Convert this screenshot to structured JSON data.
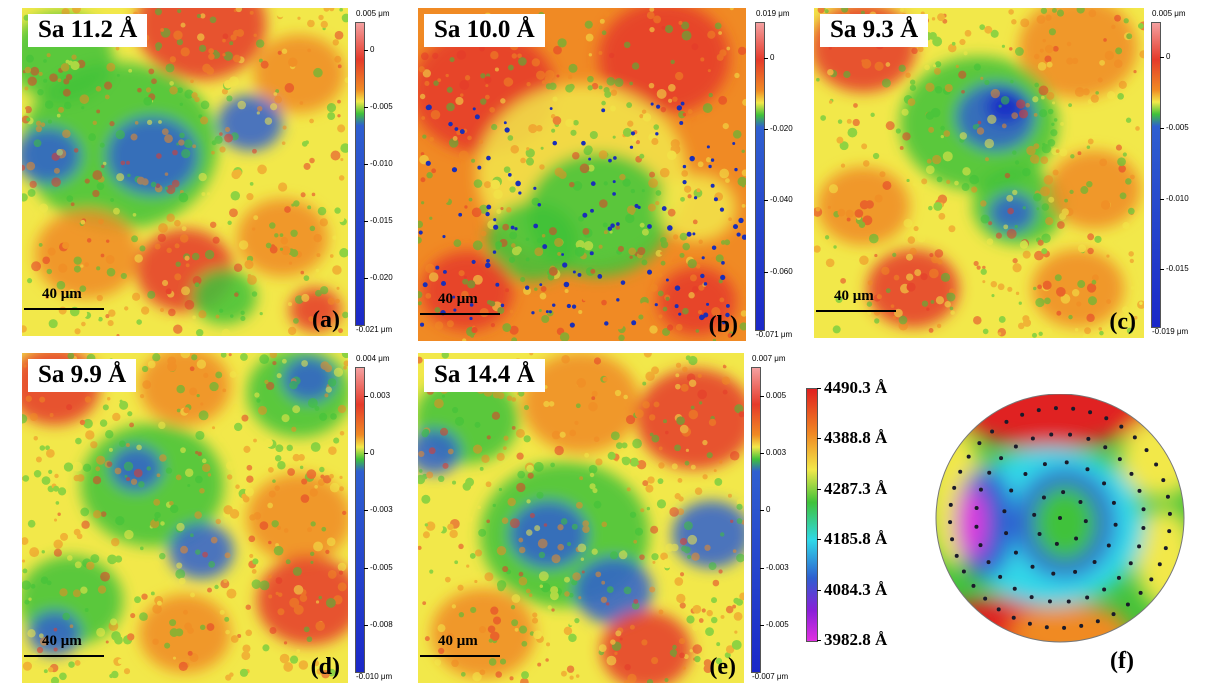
{
  "panels": [
    {
      "id": "a",
      "sa": "Sa 11.2 Å",
      "scale": "40 μm",
      "label": "(a)",
      "colorbar": {
        "top": "0.005 μm",
        "bottom": "-0.021 μm",
        "ticks": [
          "0",
          "-0.005",
          "-0.010",
          "-0.015",
          "-0.020"
        ]
      }
    },
    {
      "id": "b",
      "sa": "Sa 10.0 Å",
      "scale": "40 μm",
      "label": "(b)",
      "colorbar": {
        "top": "0.019 μm",
        "bottom": "-0.071 μm",
        "ticks": [
          "0",
          "-0.020",
          "-0.040",
          "-0.060"
        ]
      }
    },
    {
      "id": "c",
      "sa": "Sa 9.3 Å",
      "scale": "40 μm",
      "label": "(c)",
      "colorbar": {
        "top": "0.005 μm",
        "bottom": "-0.019 μm",
        "ticks": [
          "0",
          "-0.005",
          "-0.010",
          "-0.015"
        ]
      }
    },
    {
      "id": "d",
      "sa": "Sa 9.9 Å",
      "scale": "40 μm",
      "label": "(d)",
      "colorbar": {
        "top": "0.004 μm",
        "bottom": "-0.010 μm",
        "ticks": [
          "0.003",
          "0",
          "-0.003",
          "-0.005",
          "-0.008"
        ]
      }
    },
    {
      "id": "e",
      "sa": "Sa 14.4 Å",
      "scale": "40 μm",
      "label": "(e)",
      "colorbar": {
        "top": "0.007 μm",
        "bottom": "-0.007 μm",
        "ticks": [
          "0.005",
          "0.003",
          "0",
          "-0.003",
          "-0.005"
        ]
      }
    }
  ],
  "wafer": {
    "label": "(f)",
    "legend": [
      "4490.3 Å",
      "4388.8 Å",
      "4287.3 Å",
      "4185.8 Å",
      "4084.3 Å",
      "3982.8 Å"
    ]
  },
  "colors": {
    "high": "#e53a2a",
    "upper": "#f08a24",
    "mid": "#f2e84a",
    "lowmid": "#3fc23a",
    "low": "#2f5fd0",
    "lowest": "#1b28c8",
    "cyan": "#30d8e8",
    "magenta": "#e030e0"
  }
}
